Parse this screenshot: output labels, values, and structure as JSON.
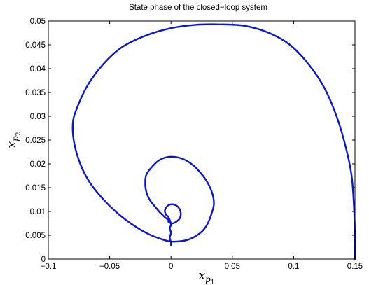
{
  "chart_data": {
    "type": "line",
    "title": "State phase of the closed−loop system",
    "xlabel": {
      "base": "x",
      "sub": "p",
      "subsub": "1"
    },
    "ylabel": {
      "base": "x",
      "sub": "p",
      "subsub": "2"
    },
    "xlim": [
      -0.1,
      0.15
    ],
    "ylim": [
      0,
      0.05
    ],
    "xticks": [
      -0.1,
      -0.05,
      0,
      0.05,
      0.1,
      0.15
    ],
    "xtick_labels": [
      "−0.1",
      "−0.05",
      "0",
      "0.05",
      "0.1",
      "0.15"
    ],
    "yticks": [
      0,
      0.005,
      0.01,
      0.015,
      0.02,
      0.025,
      0.03,
      0.035,
      0.04,
      0.045,
      0.05
    ],
    "ytick_labels": [
      "0",
      "0.005",
      "0.01",
      "0.015",
      "0.02",
      "0.025",
      "0.03",
      "0.035",
      "0.04",
      "0.045",
      "0.05"
    ],
    "grid": false,
    "series": [
      {
        "color": "#0a14d6",
        "x": [
          0.15,
          0.15,
          0.149,
          0.147,
          0.142,
          0.135,
          0.125,
          0.112,
          0.097,
          0.08,
          0.06,
          0.04,
          0.02,
          0.0,
          -0.02,
          -0.04,
          -0.055,
          -0.068,
          -0.077,
          -0.08,
          -0.079,
          -0.074,
          -0.066,
          -0.055,
          -0.043,
          -0.03,
          -0.018,
          -0.008,
          -0.001,
          0.006,
          0.013,
          0.02,
          0.026,
          0.03,
          0.033,
          0.035,
          0.034,
          0.031,
          0.026,
          0.019,
          0.01,
          0.0,
          -0.008,
          -0.014,
          -0.02,
          -0.021,
          -0.02,
          -0.017,
          -0.013,
          -0.009,
          -0.005,
          -0.002,
          -0.002,
          0.001,
          0.004,
          0.007,
          0.008,
          0.007,
          0.004,
          0.0,
          -0.003,
          -0.005,
          -0.004,
          -0.002,
          0.0,
          -0.001,
          0.0,
          -0.001,
          0.0,
          0.0
        ],
        "y": [
          0.0,
          0.005,
          0.012,
          0.018,
          0.024,
          0.03,
          0.036,
          0.041,
          0.045,
          0.0475,
          0.049,
          0.0493,
          0.0492,
          0.0485,
          0.047,
          0.0445,
          0.041,
          0.0365,
          0.0315,
          0.0285,
          0.0245,
          0.02,
          0.016,
          0.0125,
          0.0095,
          0.007,
          0.0052,
          0.0042,
          0.0037,
          0.0037,
          0.004,
          0.0048,
          0.006,
          0.0075,
          0.0095,
          0.0115,
          0.0135,
          0.0155,
          0.0175,
          0.0195,
          0.021,
          0.0215,
          0.021,
          0.0198,
          0.0178,
          0.0158,
          0.014,
          0.0123,
          0.011,
          0.0098,
          0.0088,
          0.0082,
          0.0078,
          0.0075,
          0.0078,
          0.0085,
          0.0095,
          0.0105,
          0.0113,
          0.0115,
          0.0111,
          0.0102,
          0.0093,
          0.0088,
          0.0073,
          0.0065,
          0.0055,
          0.0045,
          0.0035,
          0.0028
        ]
      }
    ]
  }
}
